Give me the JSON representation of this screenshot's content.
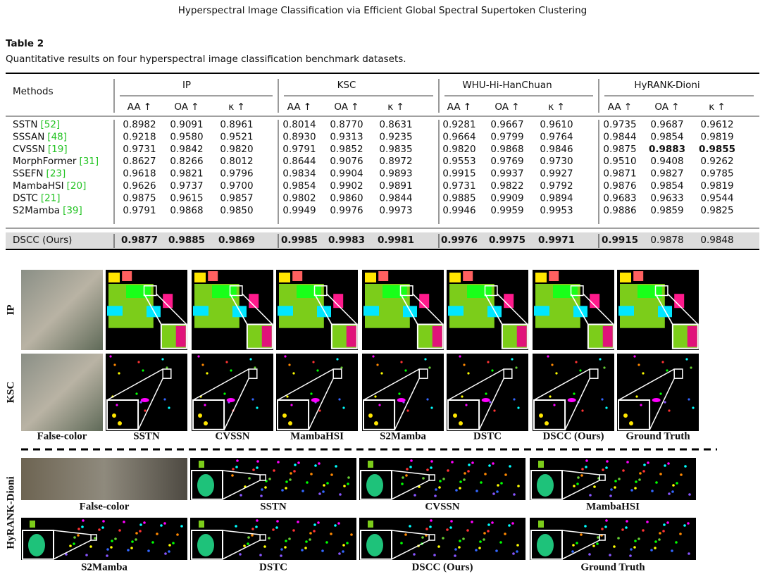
{
  "header": {
    "title": "Hyperspectral Image Classification via Efficient Global Spectral Supertoken Clustering"
  },
  "table": {
    "label": "Table 2",
    "caption": "Quantitative results on four hyperspectral image classification benchmark datasets.",
    "method_header": "Methods",
    "datasets": [
      "IP",
      "KSC",
      "WHU-Hi-HanChuan",
      "HyRANK-Dioni"
    ],
    "metrics": [
      "AA ↑",
      "OA ↑",
      "κ ↑"
    ],
    "rows": [
      {
        "method": "SSTN",
        "ref": "[52]",
        "values": [
          "0.8982",
          "0.9091",
          "0.8961",
          "0.8014",
          "0.8770",
          "0.8631",
          "0.9281",
          "0.9667",
          "0.9610",
          "0.9735",
          "0.9687",
          "0.9612"
        ]
      },
      {
        "method": "SSSAN",
        "ref": "[48]",
        "values": [
          "0.9218",
          "0.9580",
          "0.9521",
          "0.8930",
          "0.9313",
          "0.9235",
          "0.9664",
          "0.9799",
          "0.9764",
          "0.9844",
          "0.9854",
          "0.9819"
        ]
      },
      {
        "method": "CVSSN",
        "ref": "[19]",
        "values": [
          "0.9731",
          "0.9842",
          "0.9820",
          "0.9791",
          "0.9852",
          "0.9835",
          "0.9820",
          "0.9868",
          "0.9846",
          "0.9875",
          "0.9883",
          "0.9855"
        ],
        "bold": [
          10,
          11
        ]
      },
      {
        "method": "MorphFormer",
        "ref": "[31]",
        "values": [
          "0.8627",
          "0.8266",
          "0.8012",
          "0.8644",
          "0.9076",
          "0.8972",
          "0.9553",
          "0.9769",
          "0.9730",
          "0.9510",
          "0.9408",
          "0.9262"
        ]
      },
      {
        "method": "SSEFN",
        "ref": "[23]",
        "values": [
          "0.9618",
          "0.9821",
          "0.9796",
          "0.9834",
          "0.9904",
          "0.9893",
          "0.9915",
          "0.9937",
          "0.9927",
          "0.9871",
          "0.9827",
          "0.9785"
        ]
      },
      {
        "method": "MambaHSI",
        "ref": "[20]",
        "values": [
          "0.9626",
          "0.9737",
          "0.9700",
          "0.9854",
          "0.9902",
          "0.9891",
          "0.9731",
          "0.9822",
          "0.9792",
          "0.9876",
          "0.9854",
          "0.9819"
        ]
      },
      {
        "method": "DSTC",
        "ref": "[21]",
        "values": [
          "0.9875",
          "0.9615",
          "0.9857",
          "0.9802",
          "0.9860",
          "0.9844",
          "0.9885",
          "0.9909",
          "0.9894",
          "0.9683",
          "0.9633",
          "0.9544"
        ]
      },
      {
        "method": "S2Mamba",
        "ref": "[39]",
        "values": [
          "0.9791",
          "0.9868",
          "0.9850",
          "0.9949",
          "0.9976",
          "0.9973",
          "0.9946",
          "0.9959",
          "0.9953",
          "0.9886",
          "0.9859",
          "0.9825"
        ]
      },
      {
        "method": "DSCC (Ours)",
        "values": [
          "0.9877",
          "0.9885",
          "0.9869",
          "0.9985",
          "0.9983",
          "0.9981",
          "0.9976",
          "0.9975",
          "0.9971",
          "0.9915",
          "0.9878",
          "0.9848"
        ],
        "bold": [
          0,
          1,
          2,
          3,
          4,
          5,
          6,
          7,
          8,
          9
        ],
        "highlight": true
      }
    ]
  },
  "figure": {
    "row_labels": [
      "IP",
      "KSC"
    ],
    "columns": [
      "False-color",
      "SSTN",
      "CVSSN",
      "MambaHSI",
      "S2Mamba",
      "DSTC",
      "DSCC (Ours)",
      "Ground Truth"
    ],
    "dioni_label": "HyRANK-Dioni",
    "dioni_columns": [
      "False-color",
      "SSTN",
      "CVSSN",
      "MambaHSI",
      "S2Mamba",
      "DSTC",
      "DSCC (Ours)",
      "Ground Truth"
    ]
  }
}
